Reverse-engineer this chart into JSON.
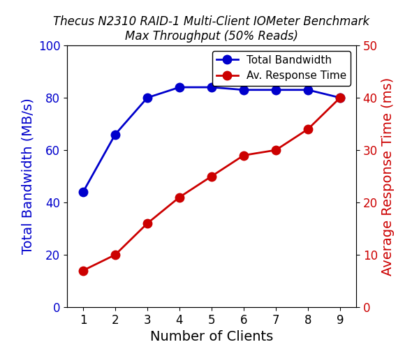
{
  "title_line1": "Thecus N2310 RAID-1 Multi-Client IOMeter Benchmark",
  "title_line2": "Max Throughput (50% Reads)",
  "xlabel": "Number of Clients",
  "ylabel_left": "Total Bandwidth (MB/s)",
  "ylabel_right": "Average Response Time (ms)",
  "clients": [
    1,
    2,
    3,
    4,
    5,
    6,
    7,
    8,
    9
  ],
  "bandwidth": [
    44,
    66,
    80,
    84,
    84,
    83,
    83,
    83,
    80
  ],
  "response_time": [
    7,
    10,
    16,
    21,
    25,
    29,
    30,
    34,
    40
  ],
  "bw_color": "#0000cc",
  "rt_color": "#cc0000",
  "ylim_left": [
    0,
    100
  ],
  "ylim_right": [
    0,
    50
  ],
  "legend_bw": "Total Bandwidth",
  "legend_rt": "Av. Response Time",
  "title_style": "italic",
  "title_fontsize": 12,
  "axis_label_fontsize": 14,
  "tick_fontsize": 12,
  "legend_fontsize": 11,
  "xlabel_fontsize": 14,
  "marker_size": 9,
  "line_width": 2.0
}
